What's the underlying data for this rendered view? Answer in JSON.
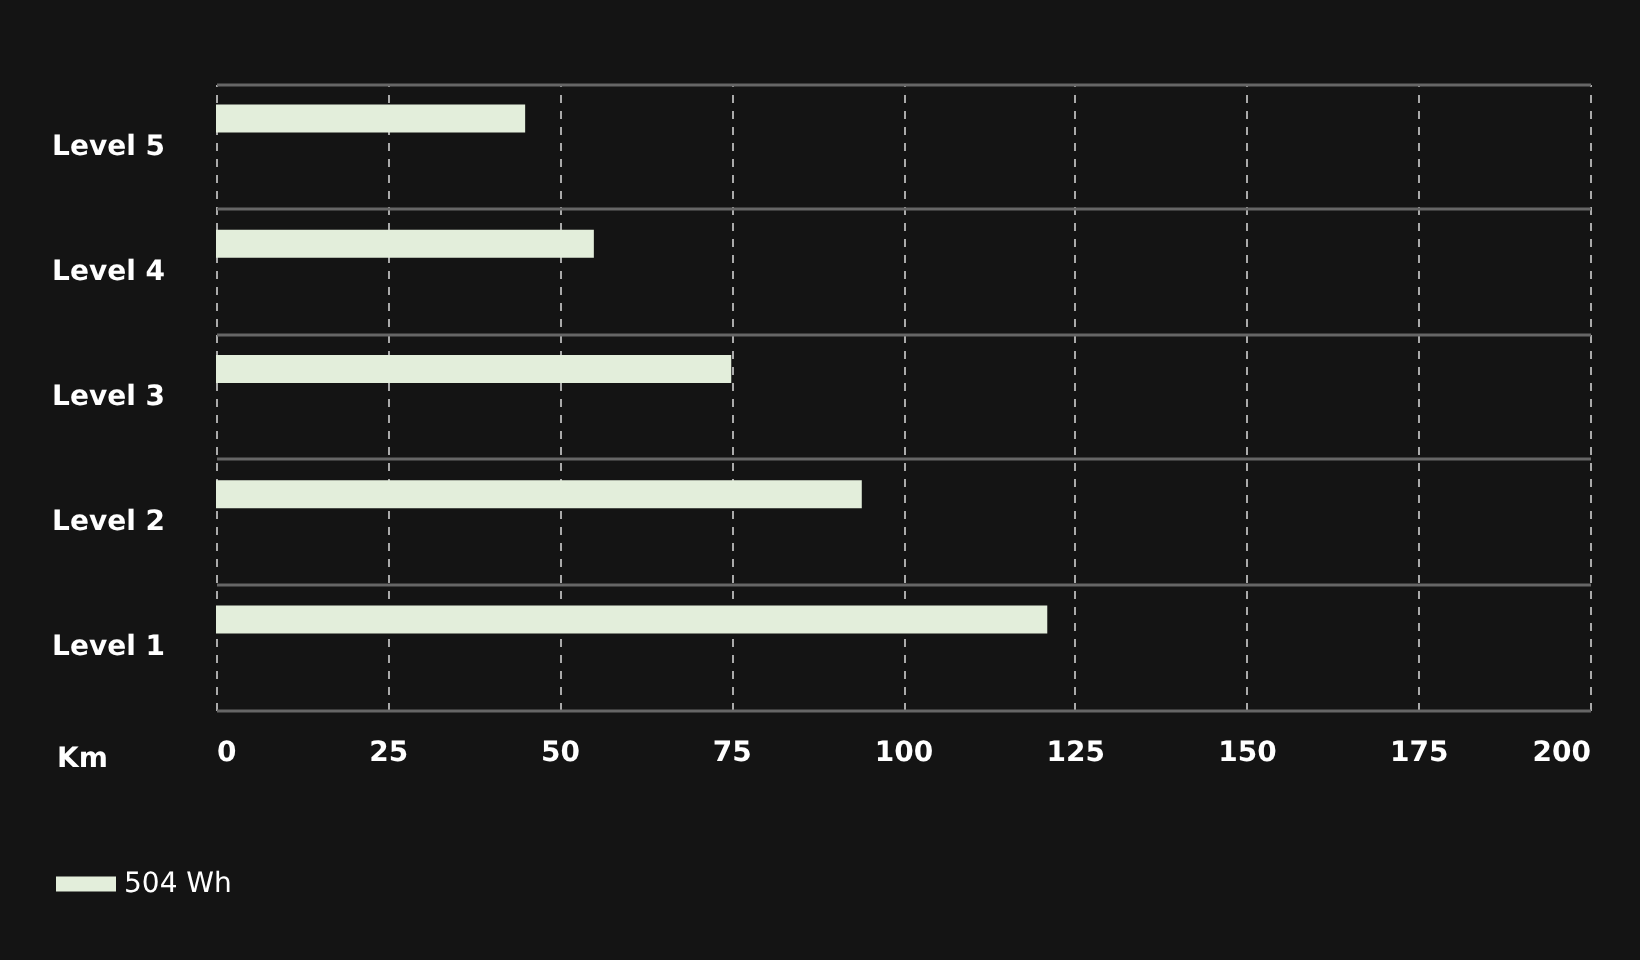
{
  "chart_data": {
    "type": "bar",
    "orientation": "horizontal",
    "categories": [
      "Level 5",
      "Level 4",
      "Level 3",
      "Level 2",
      "Level 1"
    ],
    "series": [
      {
        "name": "504 Wh",
        "color": "#e3eedb",
        "values": [
          45,
          55,
          75,
          94,
          121
        ]
      }
    ],
    "xlabel": "Km",
    "xlim": [
      0,
      200
    ],
    "xticks": [
      0,
      25,
      50,
      75,
      100,
      125,
      150,
      175,
      200
    ],
    "grid": true,
    "legend": "bottom left"
  }
}
